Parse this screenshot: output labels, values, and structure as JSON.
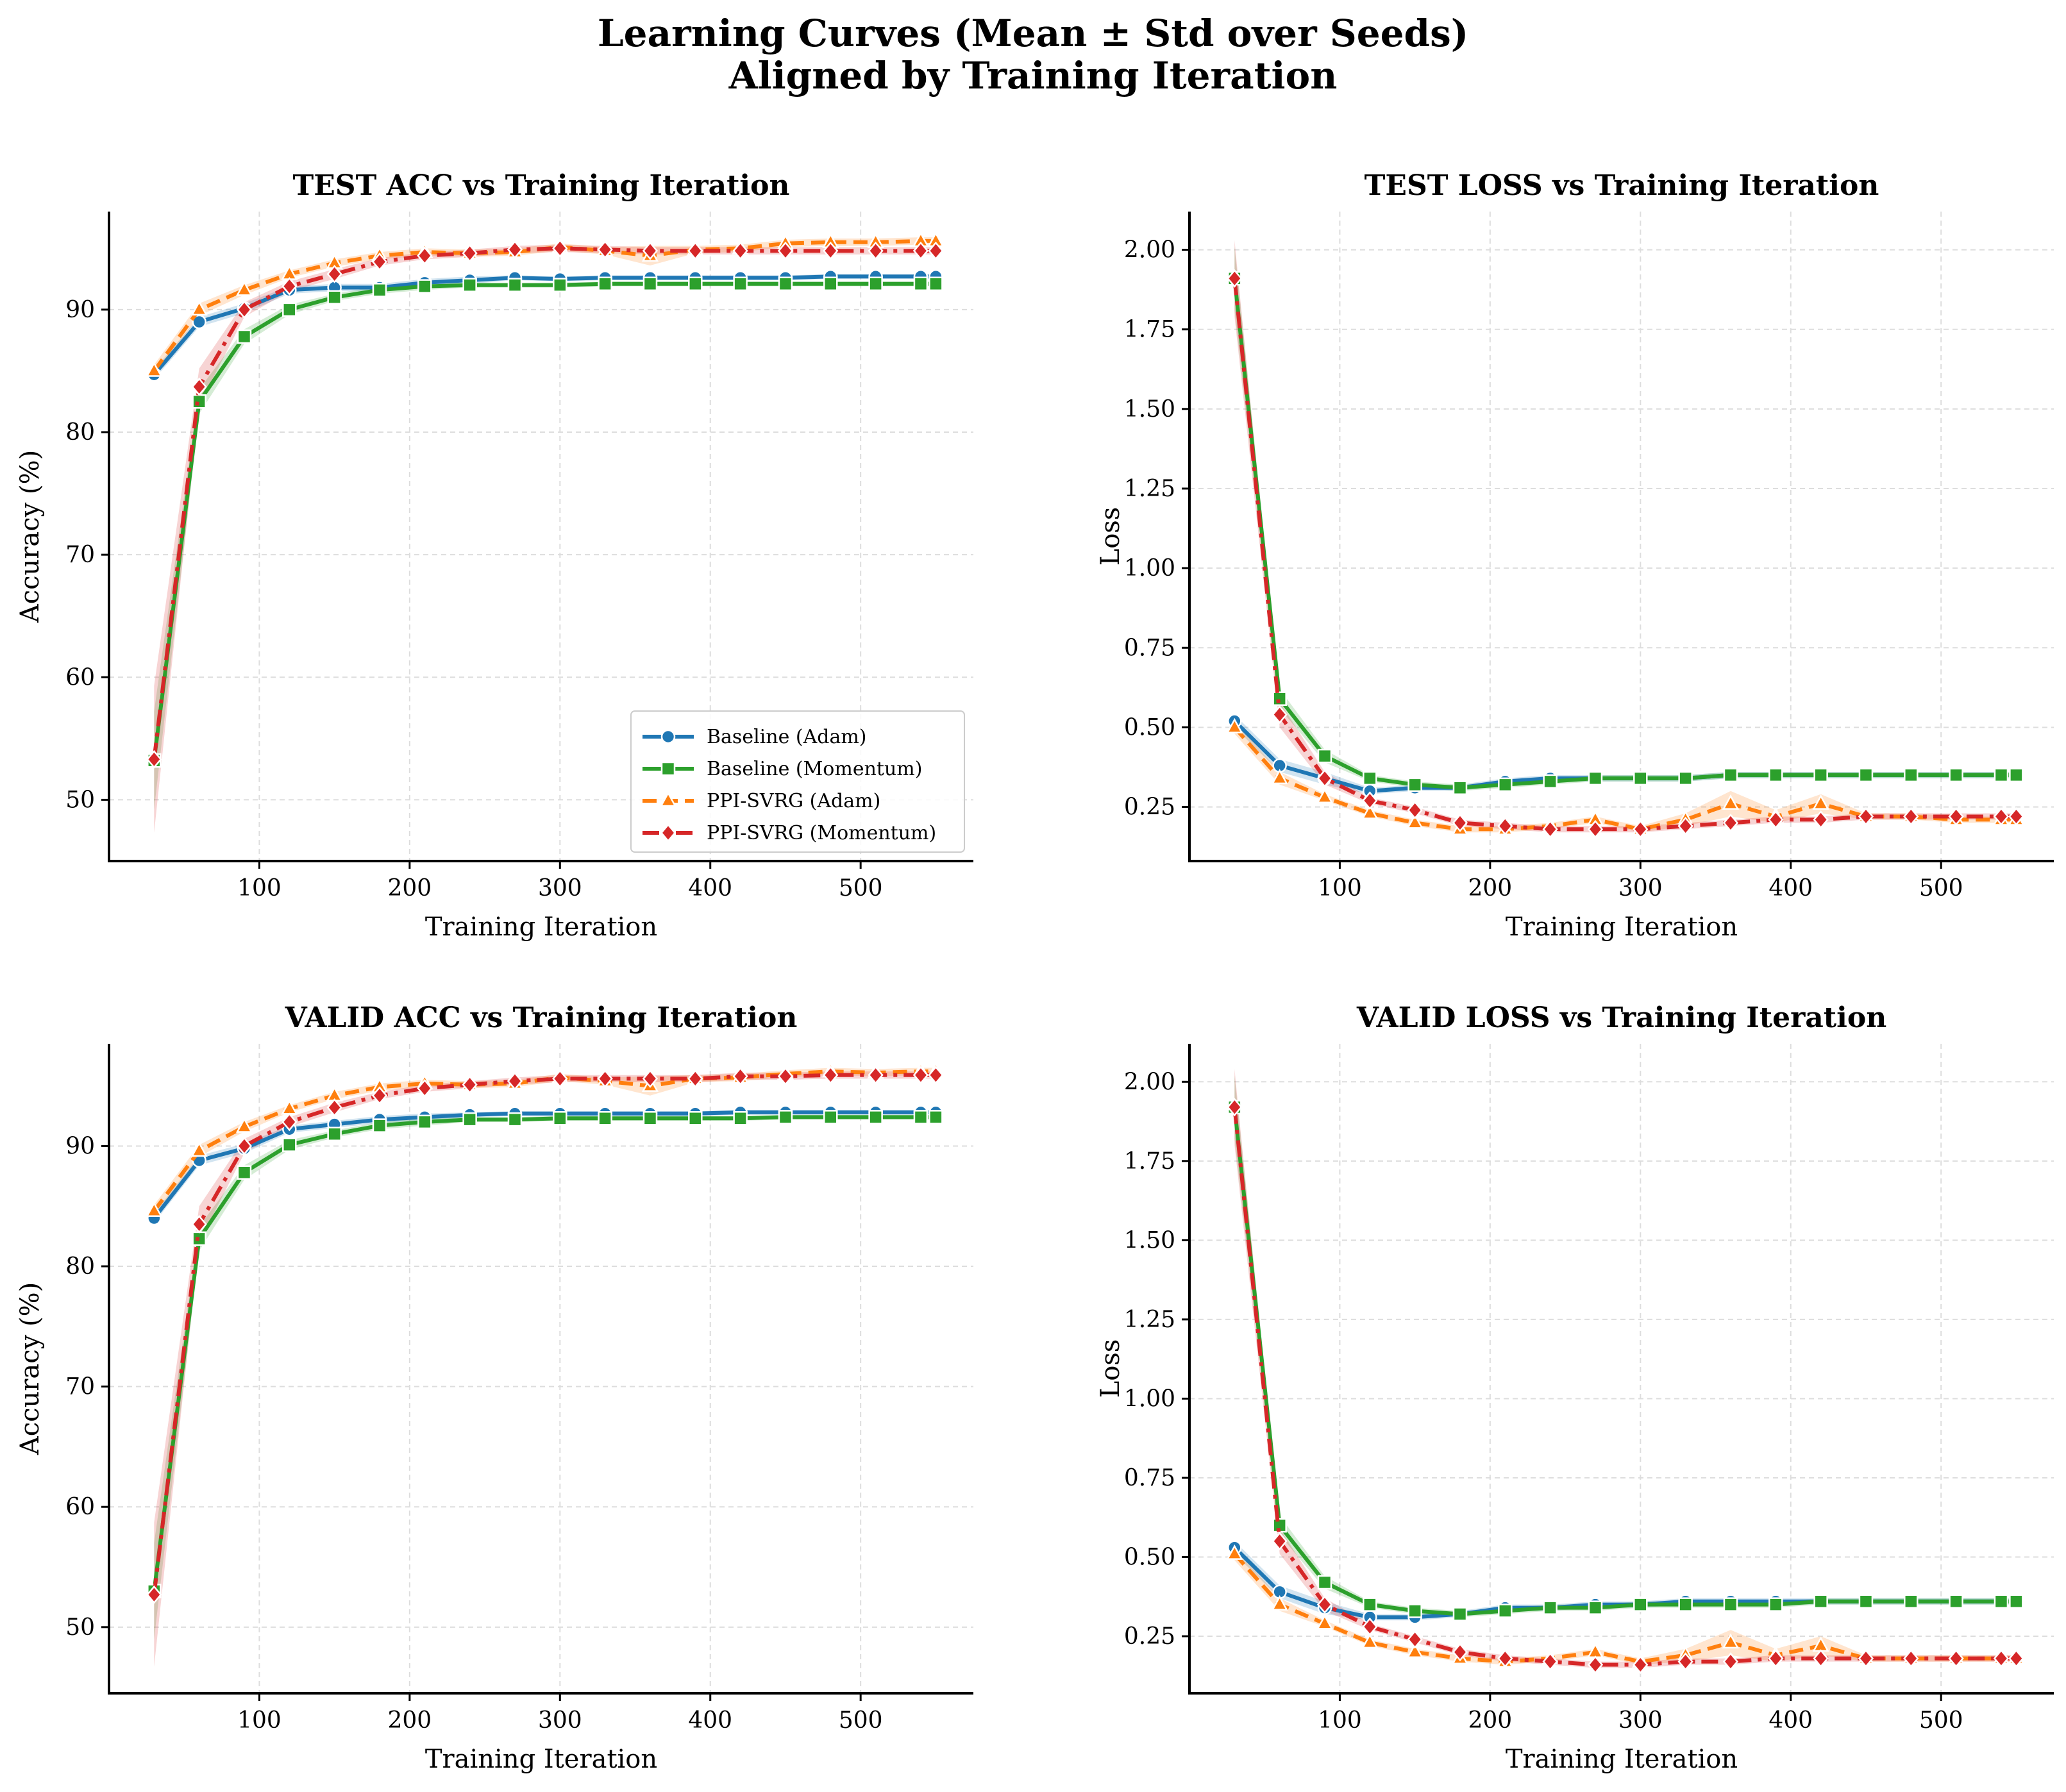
{
  "figure": {
    "title_line1": "Learning Curves (Mean ± Std over Seeds)",
    "title_line2": "Aligned by Training Iteration"
  },
  "series_styles": [
    {
      "name": "Baseline (Adam)",
      "color": "#1f77b4",
      "marker": "circle",
      "dash": "solid"
    },
    {
      "name": "Baseline (Momentum)",
      "color": "#2ca02c",
      "marker": "square",
      "dash": "solid"
    },
    {
      "name": "PPI-SVRG (Adam)",
      "color": "#ff7f0e",
      "marker": "triangle",
      "dash": "dashed"
    },
    {
      "name": "PPI-SVRG (Momentum)",
      "color": "#d62728",
      "marker": "diamond",
      "dash": "dashdot"
    }
  ],
  "chart_data": [
    {
      "type": "line",
      "title": "TEST ACC vs Training Iteration",
      "xlabel": "Training Iteration",
      "ylabel": "Accuracy (%)",
      "xlim": [
        0,
        575
      ],
      "ylim": [
        45,
        98
      ],
      "xticks": [
        100,
        200,
        300,
        400,
        500
      ],
      "yticks": [
        50,
        60,
        70,
        80,
        90
      ],
      "ytick_labels": [
        "50",
        "60",
        "70",
        "80",
        "90"
      ],
      "legend": "lower-right",
      "x": [
        30,
        60,
        90,
        120,
        150,
        180,
        210,
        240,
        270,
        300,
        330,
        360,
        390,
        420,
        450,
        480,
        510,
        540,
        550
      ],
      "series": [
        {
          "name": "Baseline (Adam)",
          "values": [
            84.7,
            89.0,
            90.1,
            91.6,
            91.8,
            91.8,
            92.2,
            92.4,
            92.6,
            92.5,
            92.6,
            92.6,
            92.6,
            92.6,
            92.6,
            92.7,
            92.7,
            92.7,
            92.7
          ],
          "std": [
            0.4,
            0.4,
            0.4,
            0.3,
            0.3,
            0.3,
            0.3,
            0.3,
            0.2,
            0.2,
            0.2,
            0.2,
            0.2,
            0.2,
            0.2,
            0.2,
            0.2,
            0.2,
            0.2
          ]
        },
        {
          "name": "Baseline (Momentum)",
          "values": [
            53.2,
            82.5,
            87.8,
            90.0,
            91.0,
            91.6,
            91.9,
            92.0,
            92.0,
            92.0,
            92.1,
            92.1,
            92.1,
            92.1,
            92.1,
            92.1,
            92.1,
            92.1,
            92.1
          ],
          "std": [
            4.0,
            1.0,
            0.6,
            0.4,
            0.3,
            0.3,
            0.3,
            0.2,
            0.2,
            0.2,
            0.2,
            0.2,
            0.2,
            0.2,
            0.2,
            0.2,
            0.2,
            0.2,
            0.2
          ]
        },
        {
          "name": "PPI-SVRG (Adam)",
          "values": [
            85.0,
            90.0,
            91.6,
            92.9,
            93.8,
            94.4,
            94.7,
            94.6,
            94.7,
            95.1,
            94.8,
            94.4,
            94.9,
            95.0,
            95.4,
            95.5,
            95.5,
            95.6,
            95.6
          ],
          "std": [
            0.5,
            0.5,
            0.4,
            0.3,
            0.3,
            0.3,
            0.3,
            0.3,
            0.3,
            0.3,
            0.3,
            0.8,
            0.3,
            0.3,
            0.3,
            0.3,
            0.3,
            0.3,
            0.3
          ]
        },
        {
          "name": "PPI-SVRG (Momentum)",
          "values": [
            53.3,
            83.7,
            90.0,
            91.9,
            92.9,
            93.9,
            94.4,
            94.6,
            94.9,
            95.0,
            94.9,
            94.8,
            94.8,
            94.8,
            94.8,
            94.8,
            94.8,
            94.8,
            94.8
          ],
          "std": [
            6.0,
            1.5,
            0.6,
            0.4,
            0.4,
            0.3,
            0.3,
            0.3,
            0.3,
            0.3,
            0.3,
            0.3,
            0.3,
            0.3,
            0.3,
            0.3,
            0.3,
            0.3,
            0.3
          ]
        }
      ]
    },
    {
      "type": "line",
      "title": "TEST LOSS vs Training Iteration",
      "xlabel": "Training Iteration",
      "ylabel": "Loss",
      "xlim": [
        0,
        575
      ],
      "ylim": [
        0.08,
        2.12
      ],
      "xticks": [
        100,
        200,
        300,
        400,
        500
      ],
      "yticks": [
        0.25,
        0.5,
        0.75,
        1.0,
        1.25,
        1.5,
        1.75,
        2.0
      ],
      "ytick_labels": [
        "0.25",
        "0.50",
        "0.75",
        "1.00",
        "1.25",
        "1.50",
        "1.75",
        "2.00"
      ],
      "legend": "none",
      "x": [
        30,
        60,
        90,
        120,
        150,
        180,
        210,
        240,
        270,
        300,
        330,
        360,
        390,
        420,
        450,
        480,
        510,
        540,
        550
      ],
      "series": [
        {
          "name": "Baseline (Adam)",
          "values": [
            0.52,
            0.38,
            0.34,
            0.3,
            0.31,
            0.31,
            0.33,
            0.34,
            0.34,
            0.34,
            0.34,
            0.35,
            0.35,
            0.35,
            0.35,
            0.35,
            0.35,
            0.35,
            0.35
          ],
          "std": [
            0.02,
            0.02,
            0.02,
            0.01,
            0.01,
            0.01,
            0.01,
            0.01,
            0.01,
            0.01,
            0.01,
            0.01,
            0.01,
            0.01,
            0.01,
            0.01,
            0.01,
            0.01,
            0.01
          ]
        },
        {
          "name": "Baseline (Momentum)",
          "values": [
            1.91,
            0.59,
            0.41,
            0.34,
            0.32,
            0.31,
            0.32,
            0.33,
            0.34,
            0.34,
            0.34,
            0.35,
            0.35,
            0.35,
            0.35,
            0.35,
            0.35,
            0.35,
            0.35
          ],
          "std": [
            0.1,
            0.03,
            0.02,
            0.01,
            0.01,
            0.01,
            0.01,
            0.01,
            0.01,
            0.01,
            0.01,
            0.01,
            0.01,
            0.01,
            0.01,
            0.01,
            0.01,
            0.01,
            0.01
          ]
        },
        {
          "name": "PPI-SVRG (Adam)",
          "values": [
            0.5,
            0.34,
            0.28,
            0.23,
            0.2,
            0.18,
            0.18,
            0.19,
            0.21,
            0.18,
            0.21,
            0.26,
            0.22,
            0.26,
            0.22,
            0.22,
            0.21,
            0.21,
            0.21
          ],
          "std": [
            0.02,
            0.02,
            0.01,
            0.01,
            0.01,
            0.01,
            0.01,
            0.01,
            0.01,
            0.01,
            0.02,
            0.04,
            0.02,
            0.03,
            0.01,
            0.01,
            0.01,
            0.01,
            0.01
          ]
        },
        {
          "name": "PPI-SVRG (Momentum)",
          "values": [
            1.91,
            0.54,
            0.34,
            0.27,
            0.24,
            0.2,
            0.19,
            0.18,
            0.18,
            0.18,
            0.19,
            0.2,
            0.21,
            0.21,
            0.22,
            0.22,
            0.22,
            0.22,
            0.22
          ],
          "std": [
            0.12,
            0.04,
            0.02,
            0.01,
            0.01,
            0.01,
            0.01,
            0.01,
            0.01,
            0.01,
            0.01,
            0.01,
            0.01,
            0.01,
            0.01,
            0.01,
            0.01,
            0.01,
            0.01
          ]
        }
      ]
    },
    {
      "type": "line",
      "title": "VALID ACC vs Training Iteration",
      "xlabel": "Training Iteration",
      "ylabel": "Accuracy (%)",
      "xlim": [
        0,
        575
      ],
      "ylim": [
        44.5,
        98.5
      ],
      "xticks": [
        100,
        200,
        300,
        400,
        500
      ],
      "yticks": [
        50,
        60,
        70,
        80,
        90
      ],
      "ytick_labels": [
        "50",
        "60",
        "70",
        "80",
        "90"
      ],
      "legend": "none",
      "x": [
        30,
        60,
        90,
        120,
        150,
        180,
        210,
        240,
        270,
        300,
        330,
        360,
        390,
        420,
        450,
        480,
        510,
        540,
        550
      ],
      "series": [
        {
          "name": "Baseline (Adam)",
          "values": [
            84.0,
            88.8,
            89.8,
            91.4,
            91.8,
            92.2,
            92.4,
            92.6,
            92.7,
            92.7,
            92.7,
            92.7,
            92.7,
            92.8,
            92.8,
            92.8,
            92.8,
            92.8,
            92.8
          ],
          "std": [
            0.4,
            0.4,
            0.4,
            0.3,
            0.3,
            0.3,
            0.3,
            0.2,
            0.2,
            0.2,
            0.2,
            0.2,
            0.2,
            0.2,
            0.2,
            0.2,
            0.2,
            0.2,
            0.2
          ]
        },
        {
          "name": "Baseline (Momentum)",
          "values": [
            53.0,
            82.3,
            87.8,
            90.1,
            91.0,
            91.7,
            92.0,
            92.2,
            92.2,
            92.3,
            92.3,
            92.3,
            92.3,
            92.3,
            92.4,
            92.4,
            92.4,
            92.4,
            92.4
          ],
          "std": [
            4.0,
            1.0,
            0.6,
            0.4,
            0.3,
            0.3,
            0.3,
            0.2,
            0.2,
            0.2,
            0.2,
            0.2,
            0.2,
            0.2,
            0.2,
            0.2,
            0.2,
            0.2,
            0.2
          ]
        },
        {
          "name": "PPI-SVRG (Adam)",
          "values": [
            84.6,
            89.6,
            91.6,
            93.1,
            94.2,
            94.9,
            95.2,
            95.1,
            95.2,
            95.7,
            95.4,
            95.0,
            95.6,
            95.7,
            96.0,
            96.2,
            96.1,
            96.2,
            96.2
          ],
          "std": [
            0.5,
            0.5,
            0.4,
            0.3,
            0.3,
            0.3,
            0.3,
            0.3,
            0.3,
            0.3,
            0.3,
            0.8,
            0.3,
            0.3,
            0.3,
            0.3,
            0.3,
            0.3,
            0.3
          ]
        },
        {
          "name": "PPI-SVRG (Momentum)",
          "values": [
            52.7,
            83.5,
            90.0,
            92.0,
            93.2,
            94.2,
            94.8,
            95.1,
            95.4,
            95.6,
            95.6,
            95.6,
            95.6,
            95.8,
            95.8,
            95.9,
            95.9,
            95.9,
            95.9
          ],
          "std": [
            6.0,
            1.5,
            0.6,
            0.4,
            0.4,
            0.3,
            0.3,
            0.3,
            0.3,
            0.3,
            0.3,
            0.3,
            0.3,
            0.3,
            0.3,
            0.3,
            0.3,
            0.3,
            0.3
          ]
        }
      ]
    },
    {
      "type": "line",
      "title": "VALID LOSS vs Training Iteration",
      "xlabel": "Training Iteration",
      "ylabel": "Loss",
      "xlim": [
        0,
        575
      ],
      "ylim": [
        0.07,
        2.12
      ],
      "xticks": [
        100,
        200,
        300,
        400,
        500
      ],
      "yticks": [
        0.25,
        0.5,
        0.75,
        1.0,
        1.25,
        1.5,
        1.75,
        2.0
      ],
      "ytick_labels": [
        "0.25",
        "0.50",
        "0.75",
        "1.00",
        "1.25",
        "1.50",
        "1.75",
        "2.00"
      ],
      "legend": "none",
      "x": [
        30,
        60,
        90,
        120,
        150,
        180,
        210,
        240,
        270,
        300,
        330,
        360,
        390,
        420,
        450,
        480,
        510,
        540,
        550
      ],
      "series": [
        {
          "name": "Baseline (Adam)",
          "values": [
            0.53,
            0.39,
            0.34,
            0.31,
            0.31,
            0.32,
            0.34,
            0.34,
            0.35,
            0.35,
            0.36,
            0.36,
            0.36,
            0.36,
            0.36,
            0.36,
            0.36,
            0.36,
            0.36
          ],
          "std": [
            0.02,
            0.02,
            0.02,
            0.01,
            0.01,
            0.01,
            0.01,
            0.01,
            0.01,
            0.01,
            0.01,
            0.01,
            0.01,
            0.01,
            0.01,
            0.01,
            0.01,
            0.01,
            0.01
          ]
        },
        {
          "name": "Baseline (Momentum)",
          "values": [
            1.92,
            0.6,
            0.42,
            0.35,
            0.33,
            0.32,
            0.33,
            0.34,
            0.34,
            0.35,
            0.35,
            0.35,
            0.35,
            0.36,
            0.36,
            0.36,
            0.36,
            0.36,
            0.36
          ],
          "std": [
            0.1,
            0.03,
            0.02,
            0.01,
            0.01,
            0.01,
            0.01,
            0.01,
            0.01,
            0.01,
            0.01,
            0.01,
            0.01,
            0.01,
            0.01,
            0.01,
            0.01,
            0.01,
            0.01
          ]
        },
        {
          "name": "PPI-SVRG (Adam)",
          "values": [
            0.51,
            0.35,
            0.29,
            0.23,
            0.2,
            0.18,
            0.17,
            0.18,
            0.2,
            0.17,
            0.19,
            0.23,
            0.19,
            0.22,
            0.18,
            0.18,
            0.18,
            0.18,
            0.18
          ],
          "std": [
            0.02,
            0.02,
            0.01,
            0.01,
            0.01,
            0.01,
            0.01,
            0.01,
            0.01,
            0.01,
            0.02,
            0.04,
            0.02,
            0.03,
            0.01,
            0.01,
            0.01,
            0.01,
            0.01
          ]
        },
        {
          "name": "PPI-SVRG (Momentum)",
          "values": [
            1.92,
            0.55,
            0.35,
            0.28,
            0.24,
            0.2,
            0.18,
            0.17,
            0.16,
            0.16,
            0.17,
            0.17,
            0.18,
            0.18,
            0.18,
            0.18,
            0.18,
            0.18,
            0.18
          ],
          "std": [
            0.12,
            0.04,
            0.02,
            0.01,
            0.01,
            0.01,
            0.01,
            0.01,
            0.01,
            0.01,
            0.01,
            0.01,
            0.01,
            0.01,
            0.01,
            0.01,
            0.01,
            0.01,
            0.01
          ]
        }
      ]
    }
  ]
}
